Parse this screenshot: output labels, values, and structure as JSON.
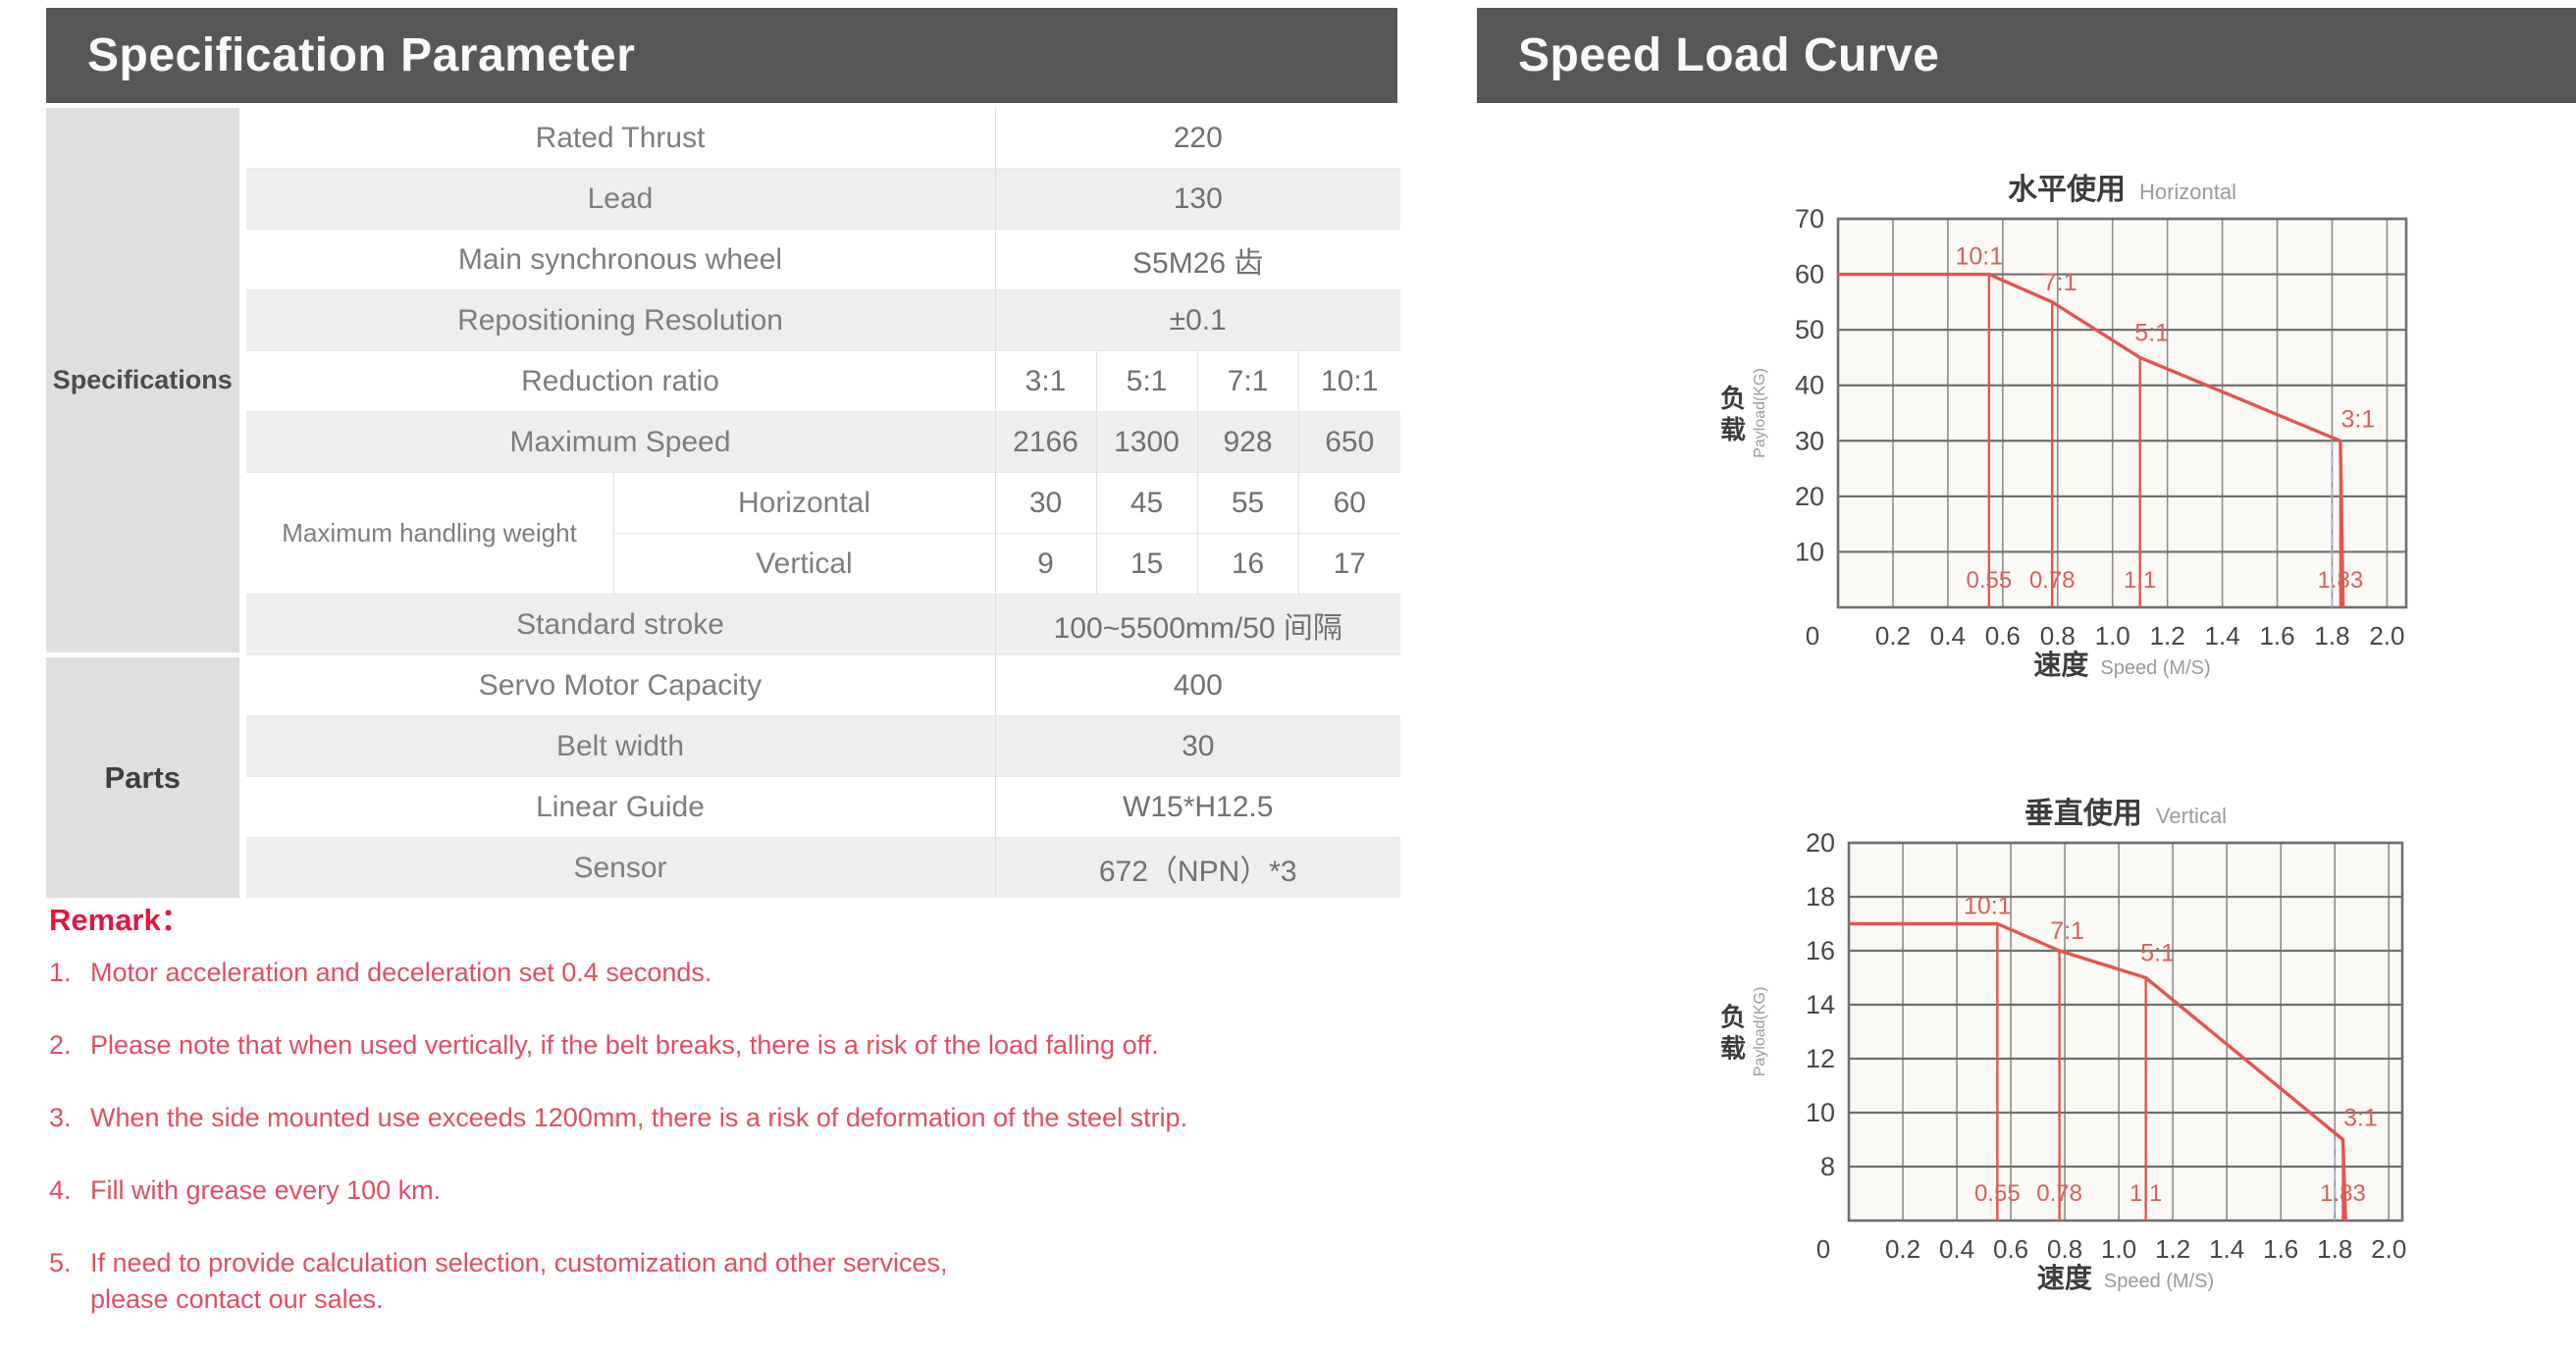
{
  "headers": {
    "left": "Specification Parameter",
    "right": "Speed Load Curve"
  },
  "spec_table": {
    "group_specifications": "Specifications",
    "group_parts": "Parts",
    "rated_thrust_label": "Rated Thrust",
    "rated_thrust_value": "220",
    "lead_label": "Lead",
    "lead_value": "130",
    "wheel_label": "Main synchronous wheel",
    "wheel_value": "S5M26 齿",
    "repositioning_label": "Repositioning Resolution",
    "repositioning_value": "±0.1",
    "reduction_label": "Reduction ratio",
    "reduction_values": [
      "3:1",
      "5:1",
      "7:1",
      "10:1"
    ],
    "max_speed_label": "Maximum Speed",
    "max_speed_values": [
      "2166",
      "1300",
      "928",
      "650"
    ],
    "handling_label": "Maximum handling weight",
    "horizontal_label": "Horizontal",
    "horizontal_values": [
      "30",
      "45",
      "55",
      "60"
    ],
    "vertical_label": "Vertical",
    "vertical_values": [
      "9",
      "15",
      "16",
      "17"
    ],
    "stroke_label": "Standard stroke",
    "stroke_value": "100~5500mm/50 间隔",
    "servo_label": "Servo Motor Capacity",
    "servo_value": "400",
    "belt_label": "Belt width",
    "belt_value": "30",
    "guide_label": "Linear Guide",
    "guide_value": "W15*H12.5",
    "sensor_label": "Sensor",
    "sensor_value": "672（NPN）*3"
  },
  "remark": {
    "title": "Remark：",
    "items": [
      {
        "num": "1.",
        "text": "Motor acceleration and deceleration set 0.4 seconds."
      },
      {
        "num": "2.",
        "text": "Please note that when used vertically, if the belt breaks, there is a risk of the load falling off."
      },
      {
        "num": "3.",
        "text": "When the side mounted use exceeds 1200mm, there is a risk of deformation of the steel strip."
      },
      {
        "num": "4.",
        "text": "Fill with grease every 100 km."
      },
      {
        "num": "5.",
        "text": "If need to provide calculation selection, customization and other services,",
        "text2": "please contact our sales."
      }
    ]
  },
  "chart_data": [
    {
      "type": "line",
      "title_cn": "水平使用",
      "title_en": "Horizontal",
      "xlabel_cn": "速度",
      "xlabel_en": "Speed (M/S)",
      "ylabel_cn": "负载",
      "ylabel_en": "Payload(KG)",
      "xlim": [
        0,
        2.07
      ],
      "ylim": [
        0,
        70
      ],
      "xticks": [
        0,
        0.2,
        0.4,
        0.6,
        0.8,
        1.0,
        1.2,
        1.4,
        1.6,
        1.8,
        2.0
      ],
      "yticks": [
        70,
        60,
        50,
        40,
        30,
        20,
        10
      ],
      "line_color": "#e4554e",
      "label_color": "#d4625c",
      "points": [
        [
          0,
          60
        ],
        [
          0.55,
          60
        ],
        [
          0.78,
          55
        ],
        [
          1.1,
          45
        ],
        [
          1.83,
          30
        ],
        [
          1.84,
          0
        ]
      ],
      "markers": [
        {
          "speed": 0.55,
          "load": 60,
          "ratio": "10:1",
          "speed_label": "0.55"
        },
        {
          "speed": 0.78,
          "load": 55,
          "ratio": "7:1",
          "speed_label": "0.78"
        },
        {
          "speed": 1.1,
          "load": 45,
          "ratio": "5:1",
          "speed_label": "1.1"
        },
        {
          "speed": 1.83,
          "load": 30,
          "ratio": "3:1",
          "speed_label": "1.83"
        }
      ]
    },
    {
      "type": "line",
      "title_cn": "垂直使用",
      "title_en": "Vertical",
      "xlabel_cn": "速度",
      "xlabel_en": "Speed (M/S)",
      "ylabel_cn": "负载",
      "ylabel_en": "Payload(KG)",
      "xlim": [
        0,
        2.05
      ],
      "ylim": [
        6,
        20
      ],
      "xticks": [
        0,
        0.2,
        0.4,
        0.6,
        0.8,
        1.0,
        1.2,
        1.4,
        1.6,
        1.8,
        2.0
      ],
      "yticks": [
        20,
        18,
        16,
        14,
        12,
        10,
        8
      ],
      "line_color": "#e4554e",
      "label_color": "#d4625c",
      "points": [
        [
          0,
          17
        ],
        [
          0.55,
          17
        ],
        [
          0.78,
          16
        ],
        [
          1.1,
          15
        ],
        [
          1.83,
          9
        ],
        [
          1.84,
          6
        ]
      ],
      "markers": [
        {
          "speed": 0.55,
          "load": 17,
          "ratio": "10:1",
          "speed_label": "0.55"
        },
        {
          "speed": 0.78,
          "load": 16,
          "ratio": "7:1",
          "speed_label": "0.78"
        },
        {
          "speed": 1.1,
          "load": 15,
          "ratio": "5:1",
          "speed_label": "1.1"
        },
        {
          "speed": 1.83,
          "load": 9,
          "ratio": "3:1",
          "speed_label": "1.83"
        }
      ]
    }
  ]
}
